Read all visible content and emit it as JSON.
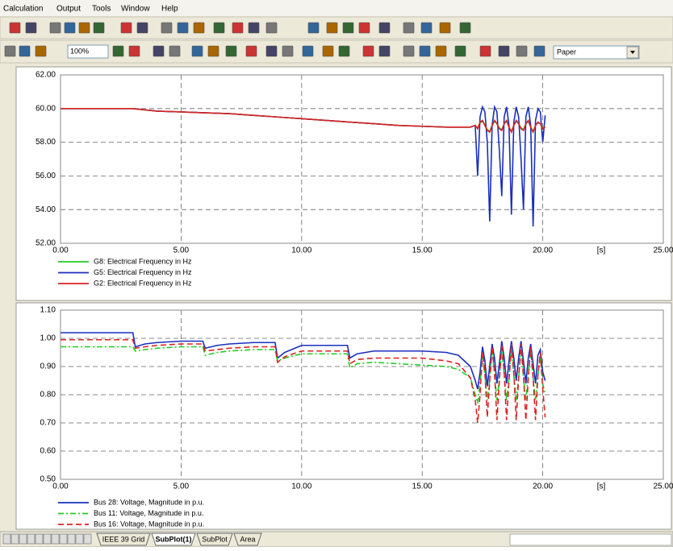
{
  "menu": [
    "Calculation",
    "Output",
    "Tools",
    "Window",
    "Help"
  ],
  "toolbar": {
    "zoom": "100%",
    "paper": "Paper"
  },
  "tabs": [
    "IEEE 39 Grid",
    "SubPlot(1)",
    "SubPlot",
    "Area"
  ],
  "chart_data": [
    {
      "type": "line",
      "x_label": "[s]",
      "xlim": [
        0,
        25
      ],
      "xticks": [
        {
          "value": 0,
          "label": "0.00"
        },
        {
          "value": 5,
          "label": "5.00"
        },
        {
          "value": 10,
          "label": "10.00"
        },
        {
          "value": 15,
          "label": "15.00"
        },
        {
          "value": 20,
          "label": "20.00"
        },
        {
          "value": 25,
          "label": "25.00"
        }
      ],
      "ylim": [
        52,
        62
      ],
      "yticks": [
        {
          "value": 52,
          "label": "52.00"
        },
        {
          "value": 54,
          "label": "54.00"
        },
        {
          "value": 56,
          "label": "56.00"
        },
        {
          "value": 58,
          "label": "58.00"
        },
        {
          "value": 60,
          "label": "60.00"
        },
        {
          "value": 62,
          "label": "62.00"
        }
      ],
      "grid": true,
      "x": [
        0,
        1,
        2,
        3,
        4,
        5,
        6,
        7,
        8,
        9,
        10,
        11,
        12,
        13,
        14,
        15,
        16,
        17,
        17.2,
        17.3,
        17.4,
        17.5,
        17.6,
        17.7,
        17.8,
        17.9,
        18.0,
        18.1,
        18.2,
        18.3,
        18.4,
        18.5,
        18.6,
        18.7,
        18.8,
        18.9,
        19.0,
        19.1,
        19.2,
        19.3,
        19.4,
        19.5,
        19.6,
        19.7,
        19.8,
        19.9,
        20.0,
        20.1
      ],
      "series": [
        {
          "name": "G8: Electrical Frequency in Hz",
          "color": "#22cc22",
          "dash": "solid",
          "values": [
            60,
            60,
            60,
            60,
            59.85,
            59.8,
            59.75,
            59.7,
            59.6,
            59.5,
            59.4,
            59.3,
            59.2,
            59.1,
            59.0,
            58.95,
            58.9,
            58.9,
            59.0,
            58.85,
            59.15,
            59.25,
            59.0,
            58.75,
            58.65,
            59.0,
            59.25,
            59.1,
            58.85,
            58.75,
            59.1,
            59.25,
            58.9,
            58.65,
            59.0,
            59.25,
            59.1,
            58.85,
            58.75,
            59.1,
            59.25,
            58.9,
            58.65,
            59.0,
            59.15,
            59.1,
            58.85,
            58.9
          ]
        },
        {
          "name": "G5: Electrical Frequency in Hz",
          "color": "#1a2fbf",
          "dash": "solid",
          "values": [
            60,
            60,
            60,
            60,
            59.85,
            59.8,
            59.75,
            59.7,
            59.6,
            59.5,
            59.4,
            59.3,
            59.2,
            59.1,
            59.0,
            58.95,
            58.9,
            58.9,
            59.0,
            56.0,
            59.5,
            60.1,
            59.8,
            58.0,
            53.3,
            59.0,
            60.1,
            59.8,
            57.5,
            54.8,
            59.5,
            60.1,
            59.0,
            53.7,
            59.2,
            60.1,
            59.5,
            57.0,
            54.0,
            59.5,
            60.1,
            59.0,
            53.0,
            59.3,
            60.0,
            59.8,
            58.0,
            59.6
          ]
        },
        {
          "name": "G2: Electrical Frequency in Hz",
          "color": "#dd2222",
          "dash": "solid",
          "values": [
            60,
            60,
            60,
            60,
            59.85,
            59.8,
            59.75,
            59.7,
            59.6,
            59.5,
            59.4,
            59.3,
            59.2,
            59.1,
            59.0,
            58.95,
            58.9,
            58.9,
            59.0,
            58.8,
            59.2,
            59.3,
            59.0,
            58.7,
            58.6,
            59.0,
            59.3,
            59.1,
            58.8,
            58.7,
            59.1,
            59.3,
            58.9,
            58.6,
            59.0,
            59.3,
            59.1,
            58.8,
            58.7,
            59.1,
            59.3,
            58.9,
            58.6,
            59.0,
            59.2,
            59.1,
            58.8,
            58.9
          ]
        }
      ]
    },
    {
      "type": "line",
      "x_label": "[s]",
      "xlim": [
        0,
        25
      ],
      "xticks": [
        {
          "value": 0,
          "label": "0.00"
        },
        {
          "value": 5,
          "label": "5.00"
        },
        {
          "value": 10,
          "label": "10.00"
        },
        {
          "value": 15,
          "label": "15.00"
        },
        {
          "value": 20,
          "label": "20.00"
        },
        {
          "value": 25,
          "label": "25.00"
        }
      ],
      "ylim": [
        0.5,
        1.1
      ],
      "yticks": [
        {
          "value": 0.5,
          "label": "0.50"
        },
        {
          "value": 0.6,
          "label": "0.60"
        },
        {
          "value": 0.7,
          "label": "0.70"
        },
        {
          "value": 0.8,
          "label": "0.80"
        },
        {
          "value": 0.9,
          "label": "0.90"
        },
        {
          "value": 1.0,
          "label": "1.00"
        },
        {
          "value": 1.1,
          "label": "1.10"
        }
      ],
      "grid": true,
      "x": [
        0,
        3,
        3.1,
        3.5,
        4,
        5,
        5.9,
        6,
        6.5,
        7,
        8,
        8.9,
        9,
        9.3,
        10,
        11,
        11.9,
        12,
        12.3,
        13,
        14,
        15,
        16,
        16.5,
        17,
        17.2,
        17.3,
        17.4,
        17.5,
        17.6,
        17.7,
        17.8,
        17.9,
        18.0,
        18.1,
        18.2,
        18.3,
        18.4,
        18.5,
        18.6,
        18.7,
        18.8,
        18.9,
        19.0,
        19.1,
        19.2,
        19.3,
        19.4,
        19.5,
        19.6,
        19.7,
        19.8,
        19.9,
        20.0,
        20.1
      ],
      "series": [
        {
          "name": "Bus 28: Voltage, Magnitude in p.u.",
          "color": "#1a2fbf",
          "dash": "solid",
          "values": [
            1.02,
            1.02,
            0.97,
            0.98,
            0.985,
            0.99,
            0.99,
            0.965,
            0.975,
            0.98,
            0.985,
            0.985,
            0.93,
            0.95,
            0.975,
            0.975,
            0.975,
            0.93,
            0.945,
            0.955,
            0.955,
            0.955,
            0.95,
            0.94,
            0.9,
            0.85,
            0.82,
            0.88,
            0.97,
            0.92,
            0.83,
            0.9,
            0.98,
            0.93,
            0.84,
            0.91,
            0.99,
            0.93,
            0.84,
            0.92,
            0.99,
            0.93,
            0.85,
            0.93,
            0.99,
            0.92,
            0.84,
            0.93,
            0.98,
            0.91,
            0.84,
            0.94,
            0.96,
            0.88,
            0.85
          ]
        },
        {
          "name": "Bus 11: Voltage, Magnitude in p.u.",
          "color": "#22cc22",
          "dash": "dashdot",
          "values": [
            0.97,
            0.97,
            0.955,
            0.96,
            0.965,
            0.97,
            0.97,
            0.94,
            0.95,
            0.955,
            0.96,
            0.96,
            0.92,
            0.93,
            0.945,
            0.945,
            0.945,
            0.895,
            0.91,
            0.915,
            0.91,
            0.905,
            0.9,
            0.89,
            0.86,
            0.8,
            0.77,
            0.84,
            0.94,
            0.87,
            0.78,
            0.85,
            0.96,
            0.87,
            0.78,
            0.86,
            0.96,
            0.87,
            0.78,
            0.86,
            0.96,
            0.87,
            0.78,
            0.86,
            0.96,
            0.86,
            0.78,
            0.87,
            0.96,
            0.86,
            0.78,
            0.87,
            0.94,
            0.84,
            0.8
          ]
        },
        {
          "name": "Bus 16: Voltage, Magnitude in p.u.",
          "color": "#dd2222",
          "dash": "dashed",
          "values": [
            0.995,
            0.995,
            0.965,
            0.97,
            0.975,
            0.98,
            0.98,
            0.955,
            0.96,
            0.965,
            0.97,
            0.97,
            0.915,
            0.935,
            0.955,
            0.955,
            0.955,
            0.91,
            0.925,
            0.93,
            0.93,
            0.93,
            0.92,
            0.91,
            0.86,
            0.78,
            0.7,
            0.8,
            0.95,
            0.88,
            0.72,
            0.85,
            0.97,
            0.88,
            0.71,
            0.85,
            0.98,
            0.88,
            0.71,
            0.85,
            0.98,
            0.88,
            0.71,
            0.86,
            0.98,
            0.87,
            0.71,
            0.86,
            0.97,
            0.86,
            0.71,
            0.87,
            0.95,
            0.82,
            0.72
          ]
        }
      ]
    }
  ]
}
